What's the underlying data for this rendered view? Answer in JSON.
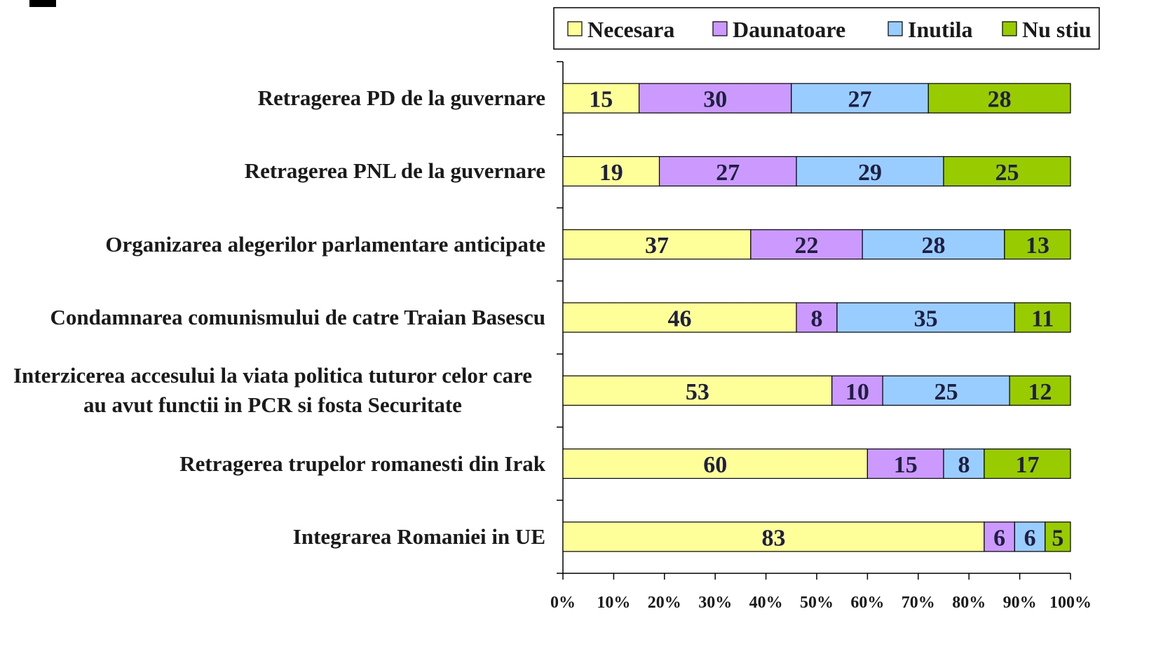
{
  "chart_data": {
    "type": "stacked_barh",
    "categories": [
      "Retragerea PD de la guvernare",
      "Retragerea PNL de la guvernare",
      "Organizarea alegerilor parlamentare anticipate",
      "Condamnarea comunismului de catre Traian Basescu",
      "Interzicerea accesului la viata politica tuturor celor care au avut functii in PCR si fosta Securitate",
      "Retragerea trupelor romanesti din Irak",
      "Integrarea Romaniei in UE"
    ],
    "series": [
      {
        "name": "Necesara",
        "color": "#ffff99",
        "values": [
          15,
          19,
          37,
          46,
          53,
          60,
          83
        ]
      },
      {
        "name": "Daunatoare",
        "color": "#cc99ff",
        "values": [
          30,
          27,
          22,
          8,
          10,
          15,
          6
        ]
      },
      {
        "name": "Inutila",
        "color": "#99ccff",
        "values": [
          27,
          29,
          28,
          35,
          25,
          8,
          6
        ]
      },
      {
        "name": "Nu stiu",
        "color": "#99cc00",
        "values": [
          28,
          25,
          13,
          11,
          12,
          17,
          5
        ]
      }
    ],
    "xlim": [
      0,
      100
    ],
    "xticks": [
      {
        "value": 0,
        "label": "0%"
      },
      {
        "value": 10,
        "label": "10%"
      },
      {
        "value": 20,
        "label": "20%"
      },
      {
        "value": 30,
        "label": "30%"
      },
      {
        "value": 40,
        "label": "40%"
      },
      {
        "value": 50,
        "label": "50%"
      },
      {
        "value": 60,
        "label": "60%"
      },
      {
        "value": 70,
        "label": "70%"
      },
      {
        "value": 80,
        "label": "80%"
      },
      {
        "value": 90,
        "label": "90%"
      },
      {
        "value": 100,
        "label": "100%"
      }
    ],
    "legend": "top"
  }
}
